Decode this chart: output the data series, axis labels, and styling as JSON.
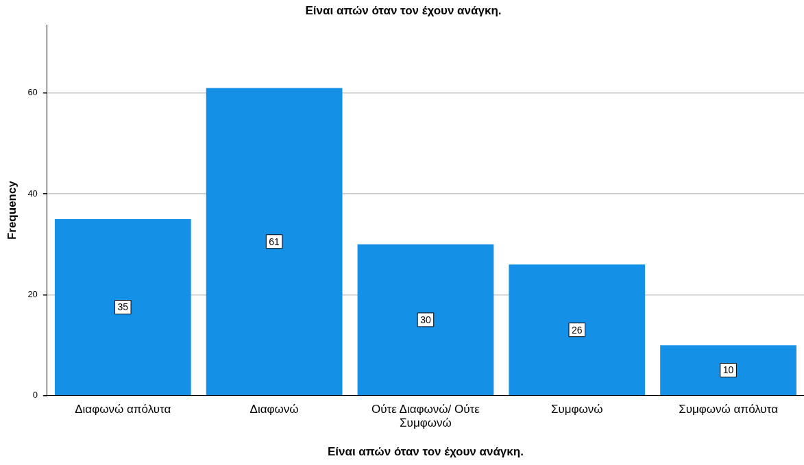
{
  "chart_data": {
    "type": "bar",
    "title": "Είναι απών όταν τον έχουν ανάγκη.",
    "xlabel": "Είναι απών όταν τον έχουν ανάγκη.",
    "ylabel": "Frequency",
    "categories": [
      "Διαφωνώ απόλυτα",
      "Διαφωνώ",
      "Ούτε Διαφωνώ/ Ούτε Συμφωνώ",
      "Συμφωνώ",
      "Συμφωνώ απόλυτα"
    ],
    "values": [
      35,
      61,
      30,
      26,
      10
    ],
    "color": "#1490e6",
    "ylim": [
      0,
      73.5
    ],
    "yticks": [
      0,
      20,
      40,
      60
    ],
    "grid": "y",
    "data_labels": true
  }
}
